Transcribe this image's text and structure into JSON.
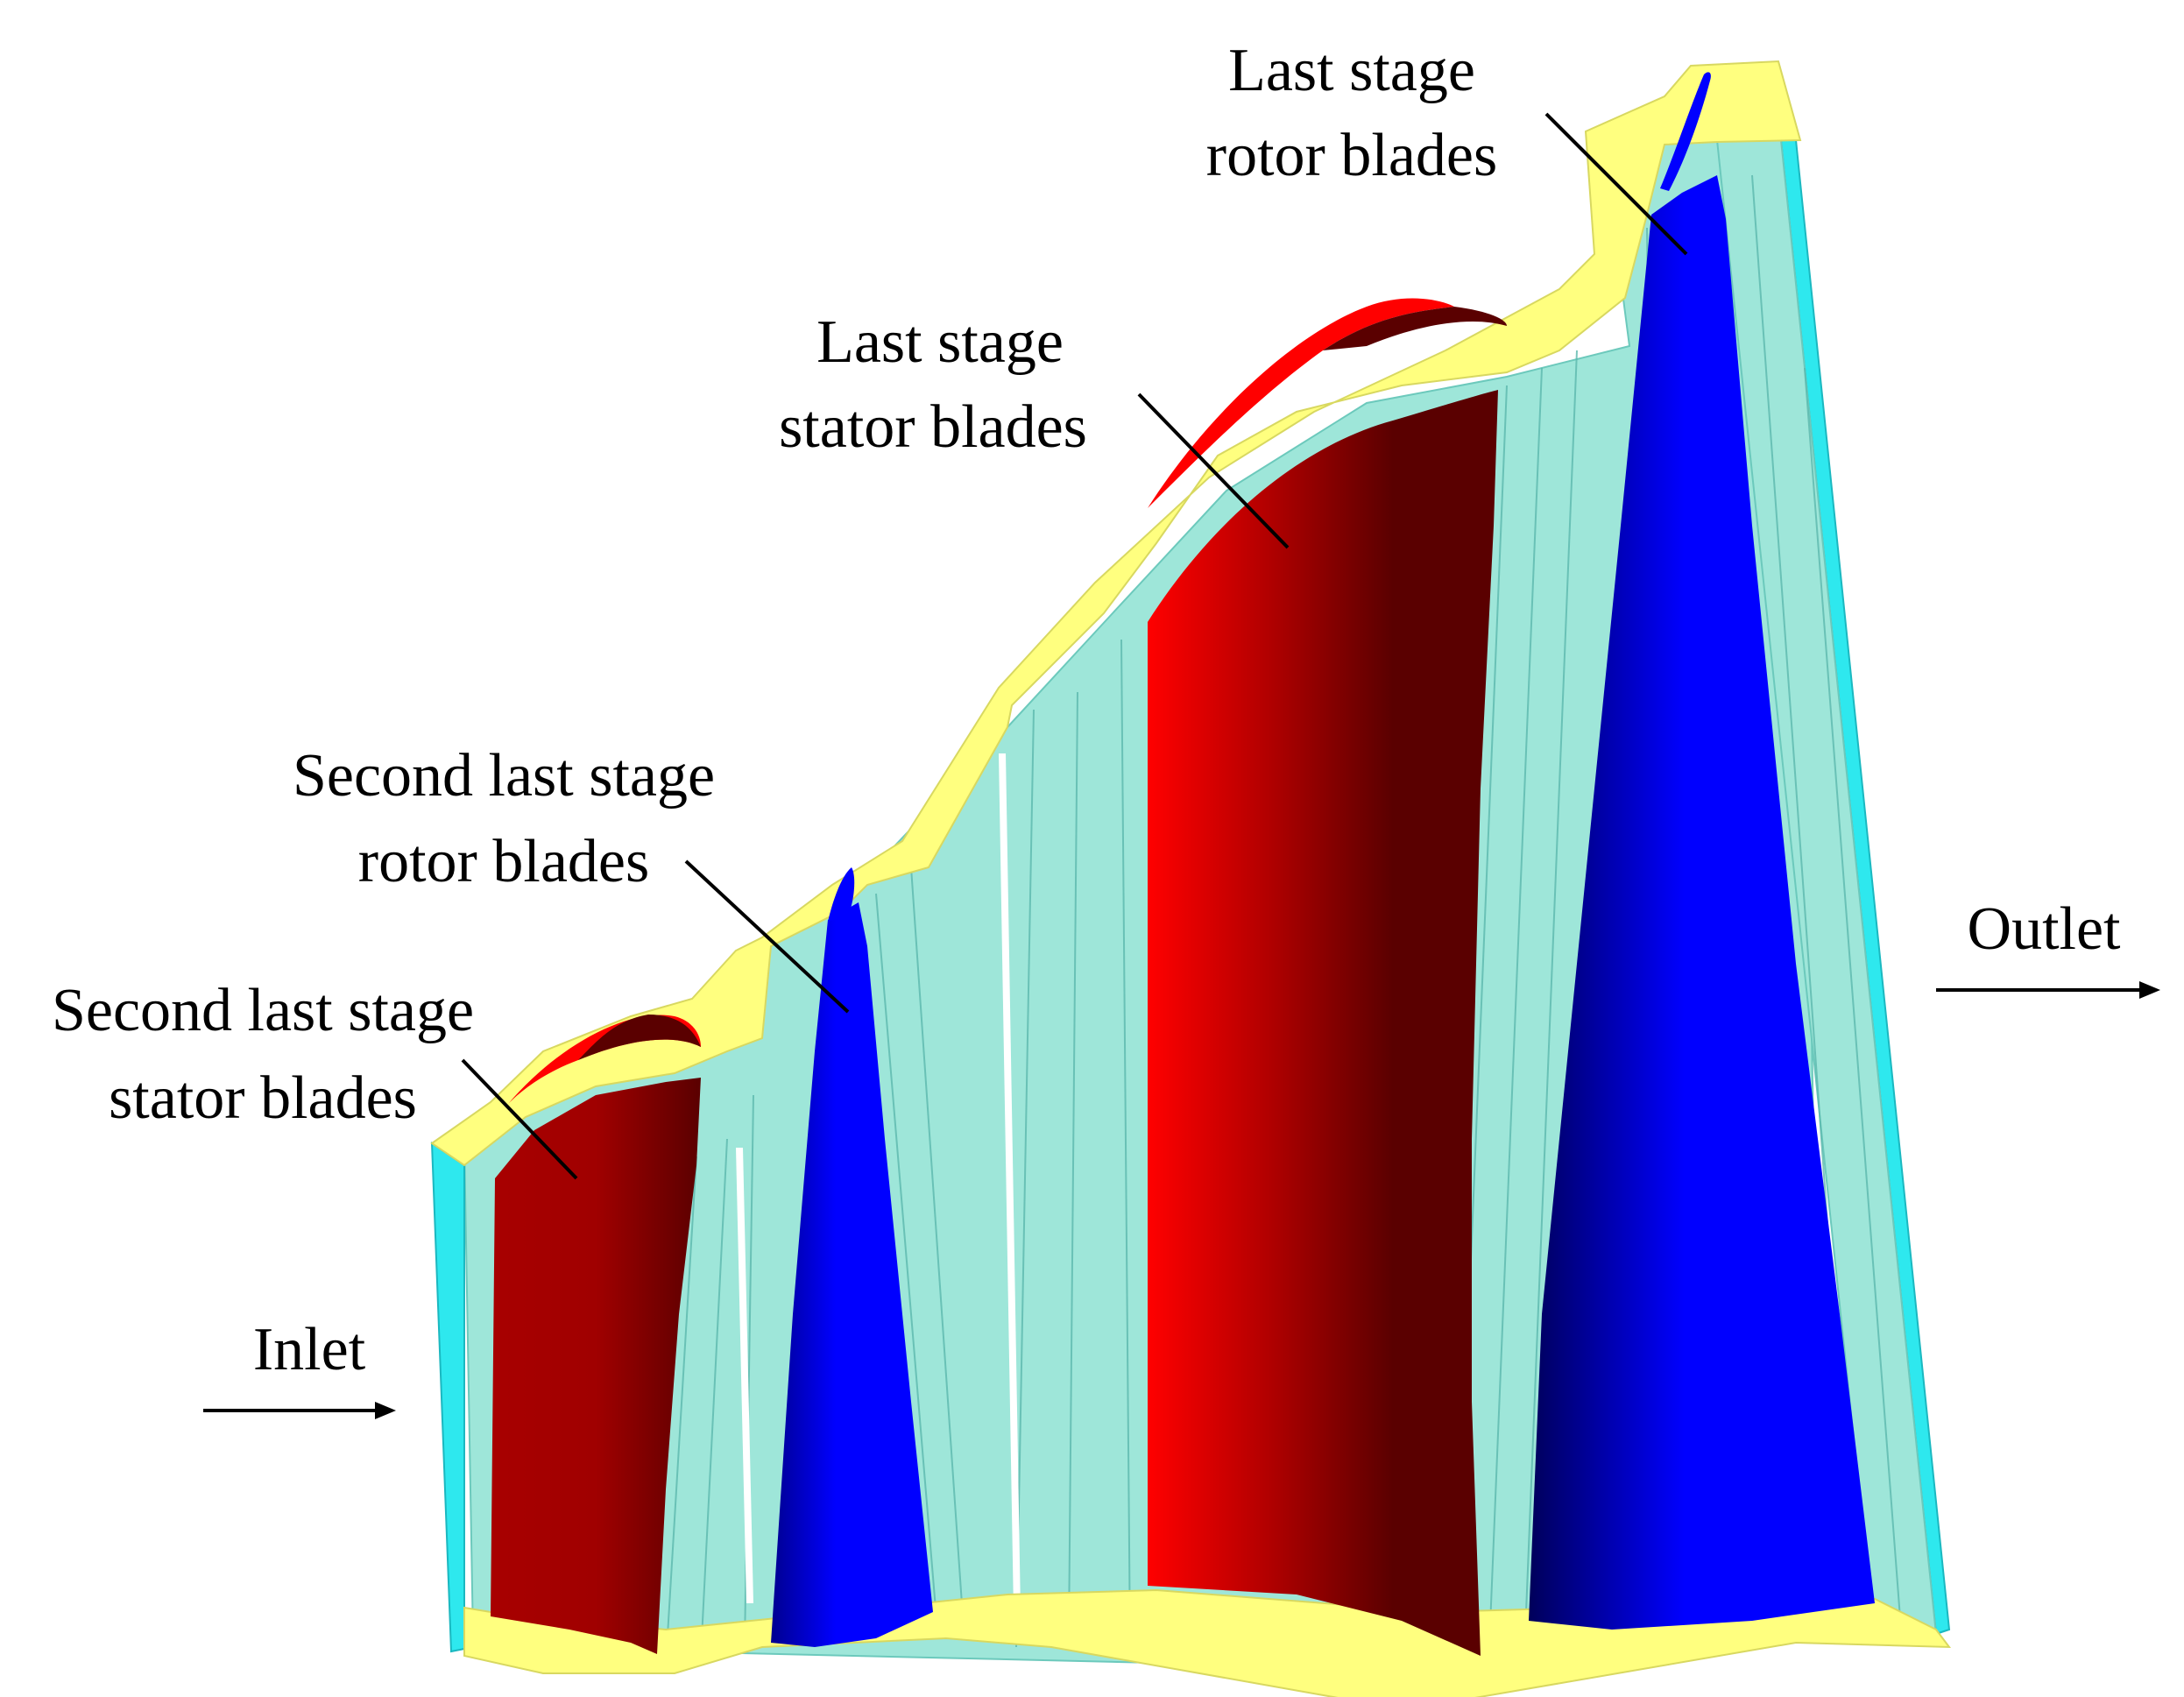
{
  "labels": {
    "last_rotor_line1": "Last stage",
    "last_rotor_line2": "rotor blades",
    "last_stator_line1": "Last stage",
    "last_stator_line2": "stator blades",
    "second_rotor_line1": "Second last stage",
    "second_rotor_line2": "rotor blades",
    "second_stator_line1": "Second last stage",
    "second_stator_line2": "stator blades",
    "inlet": "Inlet",
    "outlet": "Outlet"
  },
  "colors": {
    "passage": "#9ee6d9",
    "shroud": "#ffff7f",
    "inlet_face": "#2ee8ee",
    "stator_red": "#ff0000",
    "stator_dark": "#5a0000",
    "rotor_blue": "#0000ff",
    "rotor_dark": "#00005a"
  }
}
